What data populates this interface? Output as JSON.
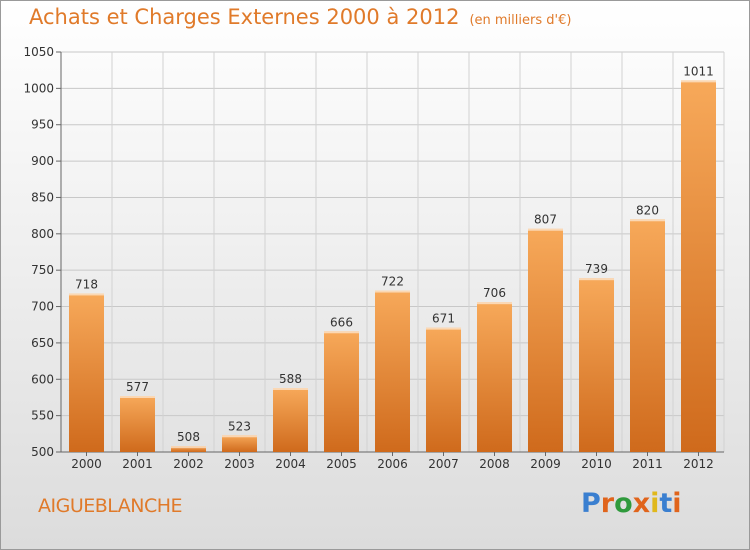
{
  "title": "Achats et Charges Externes 2000 à 2012",
  "unit_label": "(en milliers d'€)",
  "commune": "AIGUEBLANCHE",
  "logo": {
    "text": "Proxiti",
    "letter_colors": [
      "#3a7fd0",
      "#e0641c",
      "#2f9a3c",
      "#e0641c",
      "#e0b81c",
      "#3a7fd0",
      "#e0641c"
    ]
  },
  "colors": {
    "title": "#e07a2a",
    "bar_top": "#f7a95a",
    "bar_bottom": "#cf6a1c"
  },
  "chart_data": {
    "type": "bar",
    "categories": [
      "2000",
      "2001",
      "2002",
      "2003",
      "2004",
      "2005",
      "2006",
      "2007",
      "2008",
      "2009",
      "2010",
      "2011",
      "2012"
    ],
    "values": [
      718,
      577,
      508,
      523,
      588,
      666,
      722,
      671,
      706,
      807,
      739,
      820,
      1011
    ],
    "ylim": [
      500,
      1050
    ],
    "yticks": [
      500,
      550,
      600,
      650,
      700,
      750,
      800,
      850,
      900,
      950,
      1000,
      1050
    ],
    "grid": true,
    "xlabel": "",
    "ylabel": ""
  }
}
